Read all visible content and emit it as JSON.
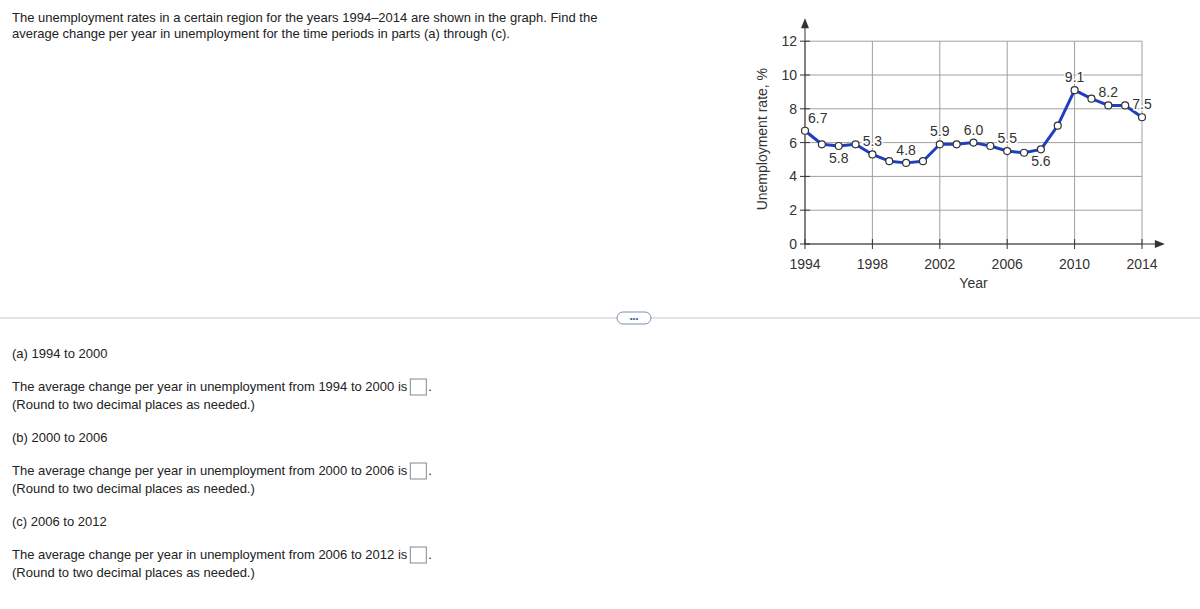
{
  "question": {
    "lines": [
      "The unemployment rates in a certain region for the years 1994–2014 are shown in the graph. Find the",
      "average change per year in unemployment for the time periods in parts (a) through (c)."
    ]
  },
  "more_button": "•••",
  "parts": [
    {
      "heading": "(a) 1994 to 2000",
      "prompt": "The average change per year in unemployment from 1994 to 2000 is",
      "suffix": ".",
      "hint": "(Round to two decimal places as needed.)"
    },
    {
      "heading": "(b) 2000 to 2006",
      "prompt": "The average change per year in unemployment from 2000 to 2006 is",
      "suffix": ".",
      "hint": "(Round to two decimal places as needed.)"
    },
    {
      "heading": "(c) 2006 to 2012",
      "prompt": "The average change per year in unemployment from 2006 to 2012 is",
      "suffix": ".",
      "hint": "(Round to two decimal places as needed.)"
    }
  ],
  "chart_data": {
    "type": "line",
    "x_label": "Year",
    "y_label": "Unemployment rate, %",
    "x": [
      1994,
      1995,
      1996,
      1997,
      1998,
      1999,
      2000,
      2001,
      2002,
      2003,
      2004,
      2005,
      2006,
      2007,
      2008,
      2009,
      2010,
      2011,
      2012,
      2013,
      2014
    ],
    "values": [
      6.7,
      5.9,
      5.8,
      5.9,
      5.3,
      4.9,
      4.8,
      4.9,
      5.9,
      5.9,
      6.0,
      5.8,
      5.5,
      5.4,
      5.6,
      7.0,
      9.1,
      8.6,
      8.2,
      8.2,
      7.5
    ],
    "value_labels": [
      "6.7",
      null,
      "5.8",
      null,
      "5.3",
      null,
      "4.8",
      null,
      "5.9",
      null,
      "6.0",
      null,
      "5.5",
      null,
      "5.6",
      null,
      "9.1",
      null,
      "8.2",
      null,
      "7.5"
    ],
    "color": "#1f3fbf",
    "marker": "circle",
    "xlim": [
      1994,
      2015
    ],
    "xticks": [
      1994,
      1998,
      2002,
      2006,
      2010,
      2014
    ],
    "ylim": [
      0,
      13
    ],
    "yticks": [
      0,
      2,
      4,
      6,
      8,
      10,
      12
    ],
    "grid": true
  }
}
